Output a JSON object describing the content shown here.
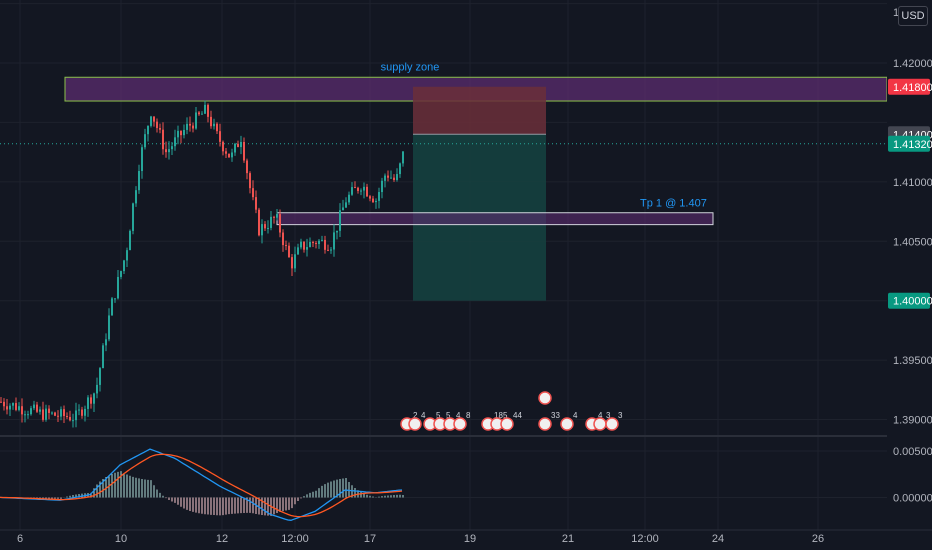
{
  "currency": "USD",
  "colors": {
    "background": "#131722",
    "grid": "#1e222d",
    "up": "#26a69a",
    "down": "#ef5350",
    "supply_fill": "#5b2c6f",
    "supply_border": "#8bc34a",
    "stop_fill": "#6b2f3a",
    "target_fill": "#15403f",
    "macd": "#2196f3",
    "signal": "#ff5722",
    "label_red": "#f23645",
    "label_green": "#089981",
    "label_grey": "#434651",
    "axis_text": "#b2b5be",
    "annotation": "#2196f3"
  },
  "chart_data": {
    "type": "candlestick",
    "x_tick_labels": [
      "6",
      "10",
      "12",
      "12:00",
      "17",
      "19",
      "21",
      "12:00",
      "24",
      "26"
    ],
    "y_tick_labels": [
      "1.42000",
      "1.41000",
      "1.40500",
      "1.39500",
      "1.39000"
    ],
    "ylim": [
      1.3887,
      1.4253
    ],
    "macd_ylim": [
      -0.0035,
      0.0065
    ],
    "macd_tick_labels": [
      "0.00500",
      "0.00000"
    ],
    "top_partial_label": "1.4",
    "price_labels": [
      {
        "text": "1.41800",
        "value": 1.418,
        "color": "red"
      },
      {
        "text": "1.41400",
        "value": 1.414,
        "color": "grey"
      },
      {
        "text": "1.41320",
        "value": 1.4132,
        "color": "green"
      },
      {
        "text": "1.40000",
        "value": 1.4,
        "color": "green"
      }
    ],
    "annotations": {
      "supply_zone_label": "supply zone",
      "supply_zone": {
        "top": 1.4188,
        "bottom": 1.4168
      },
      "tp_label": "Tp 1 @ 1.407",
      "tp_zone": {
        "top": 1.4074,
        "bottom": 1.4064
      },
      "short_position": {
        "stop": 1.418,
        "entry": 1.414,
        "target": 1.4
      },
      "last_price": 1.4132
    },
    "event_markers": [
      "2",
      "4",
      "5",
      "5",
      "4",
      "8",
      "18",
      "5",
      "44",
      "33",
      "4",
      "4",
      "3",
      "3"
    ]
  }
}
